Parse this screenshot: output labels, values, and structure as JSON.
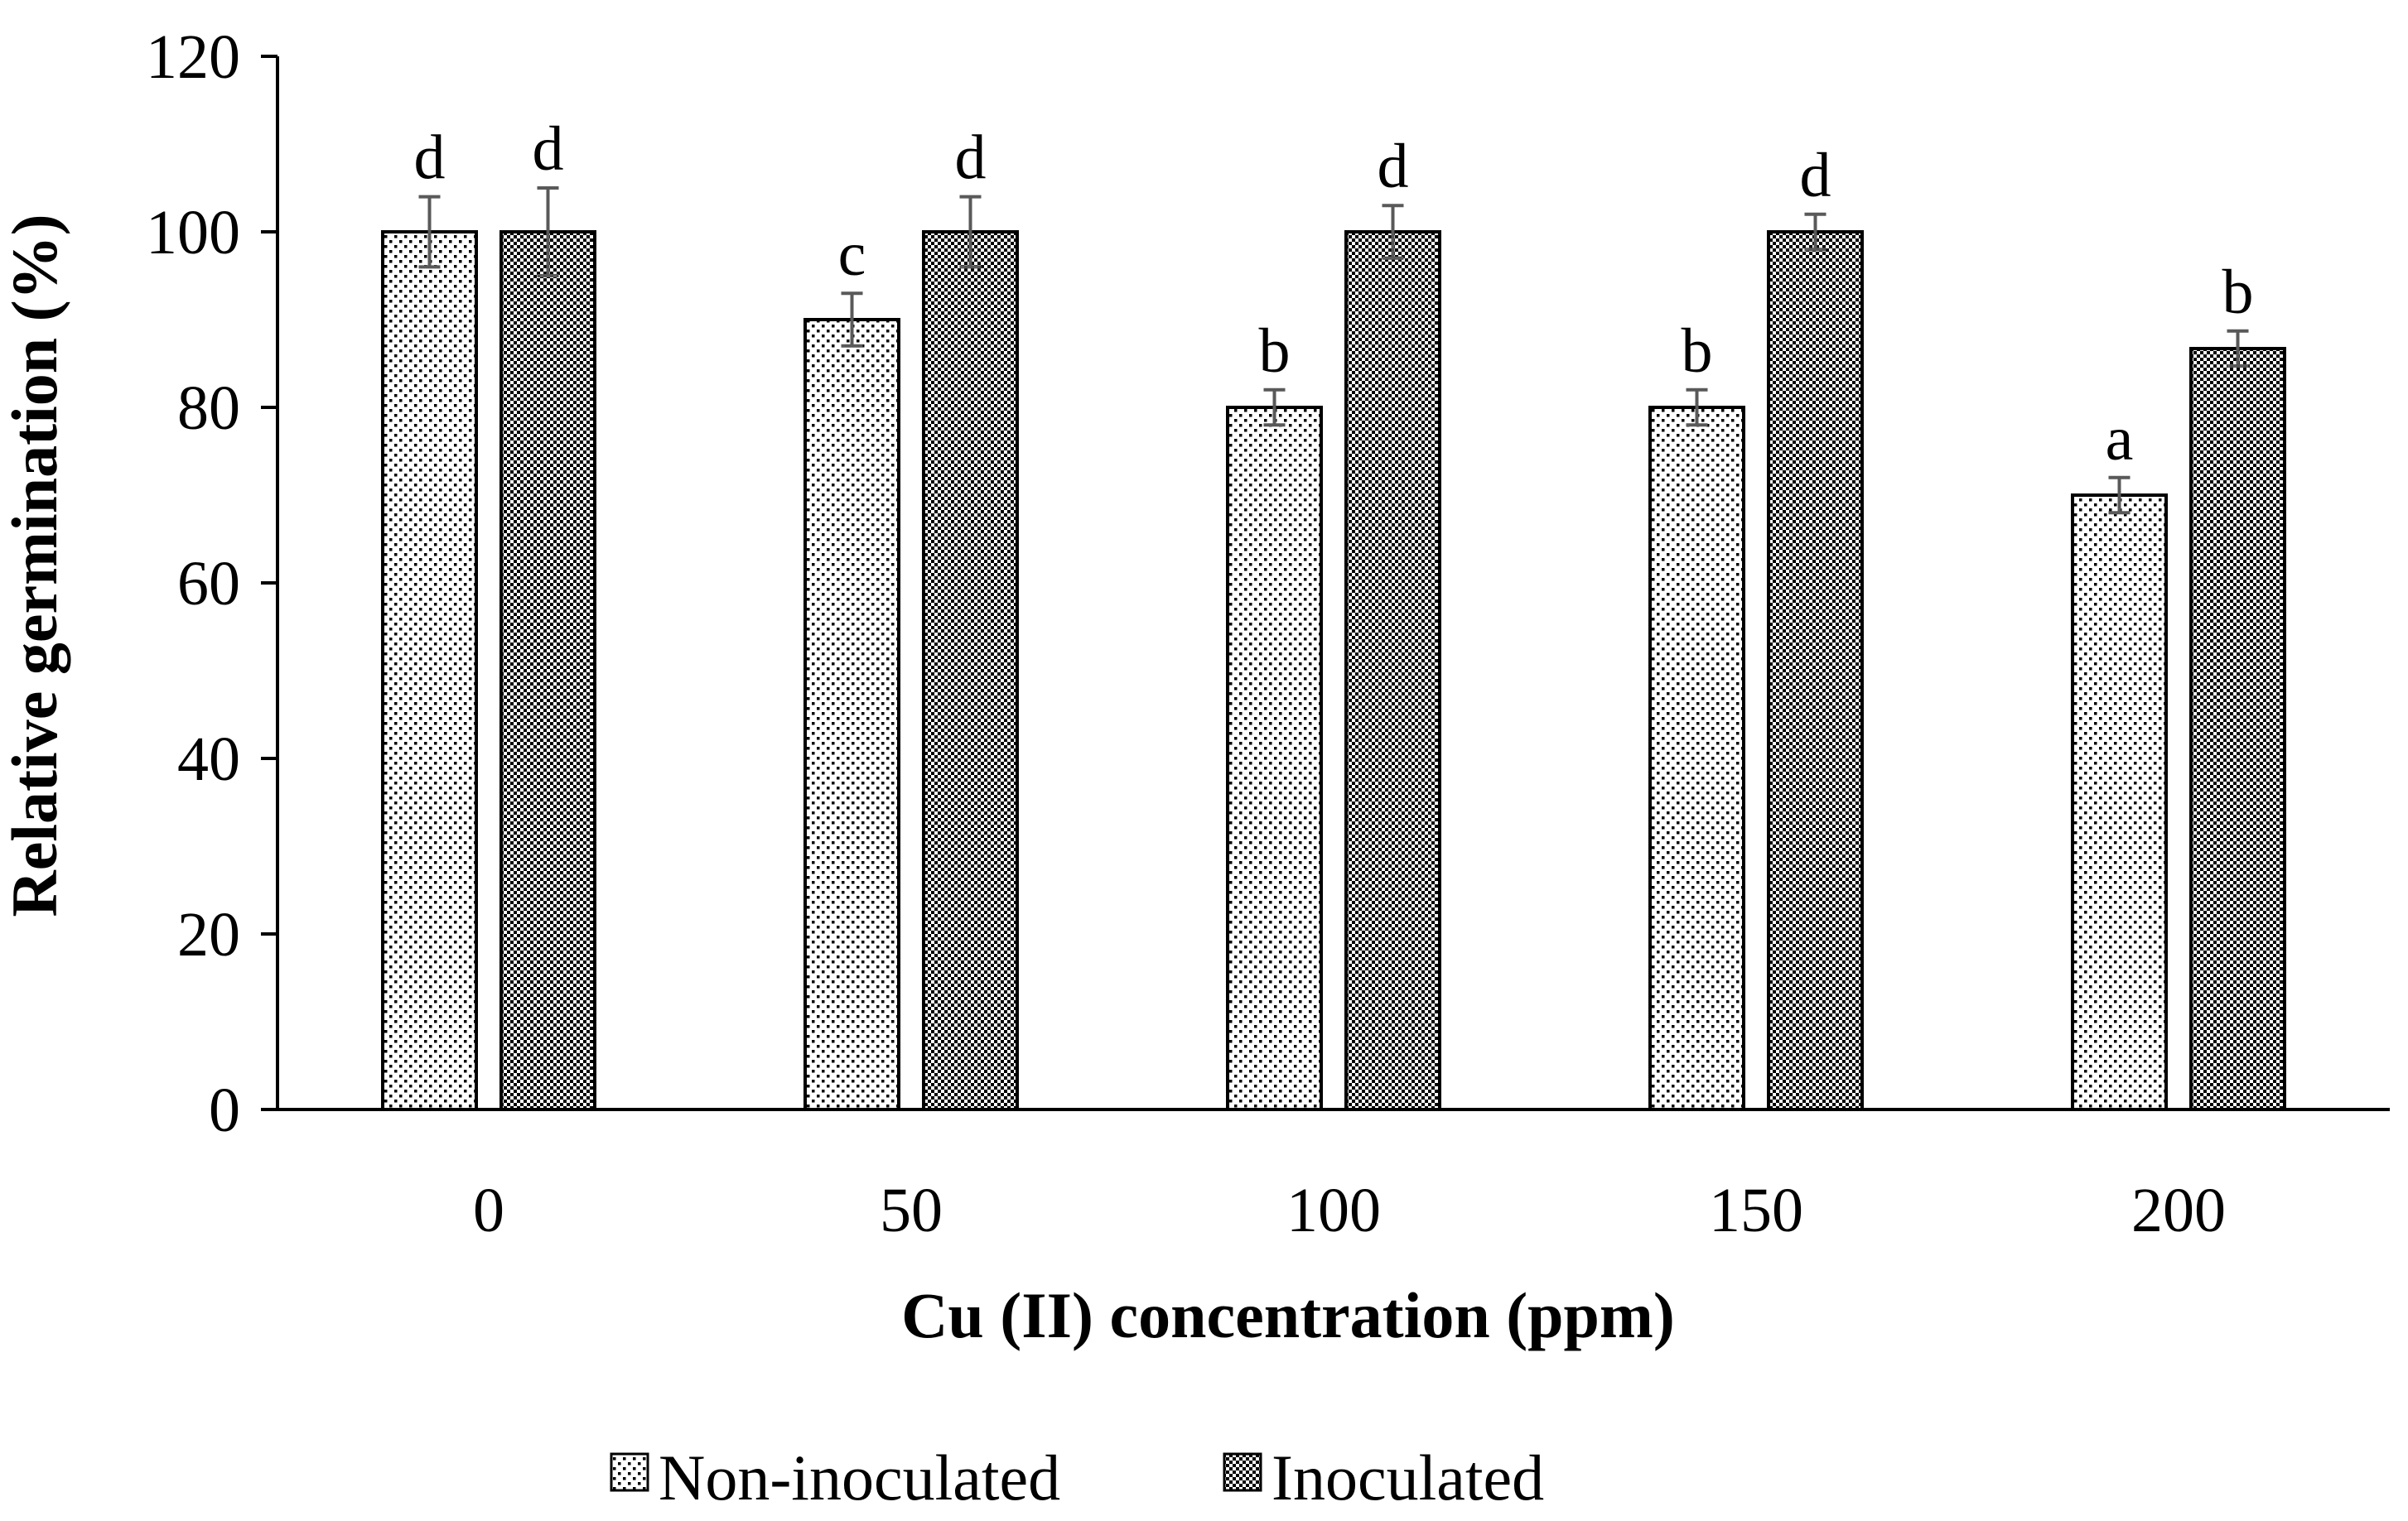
{
  "chart_data": {
    "type": "bar",
    "title": "",
    "xlabel": "Cu (II) concentration (ppm)",
    "ylabel": "Relative germination (%)",
    "ylim": [
      0,
      120
    ],
    "yticks": [
      0,
      20,
      40,
      60,
      80,
      100,
      120
    ],
    "ytick_labels": [
      "0",
      "20",
      "40",
      "60",
      "80",
      "100",
      "120"
    ],
    "categories": [
      "0",
      "50",
      "100",
      "150",
      "200"
    ],
    "legend_position": "bottom-center",
    "grid": false,
    "series": [
      {
        "name": "Non-inoculated",
        "pattern": "light-dots",
        "values": [
          100,
          90,
          80,
          80,
          70
        ],
        "errors": [
          4,
          3,
          2,
          2,
          2
        ],
        "labels": [
          "d",
          "c",
          "b",
          "b",
          "a"
        ]
      },
      {
        "name": "Inoculated",
        "pattern": "dense-dots",
        "values": [
          100,
          100,
          100,
          100,
          86.7
        ],
        "errors": [
          5,
          4,
          3,
          2,
          2
        ],
        "labels": [
          "d",
          "d",
          "d",
          "d",
          "b"
        ]
      }
    ],
    "colors": {
      "axis": "#000000",
      "error_bar": "#595959",
      "bar_fill": "#ffffff",
      "bar_stroke": "#000000"
    }
  }
}
